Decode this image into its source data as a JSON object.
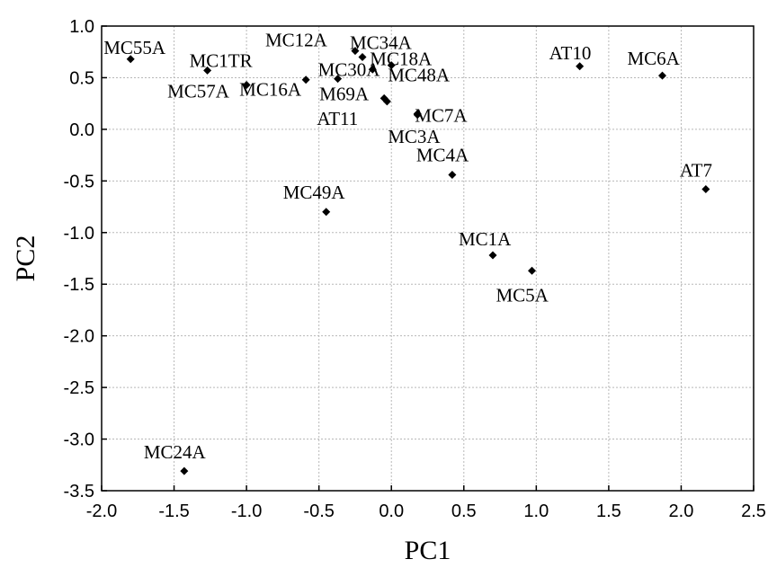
{
  "chart_data": {
    "type": "scatter",
    "title": "",
    "xlabel": "PC1",
    "ylabel": "PC2",
    "xlim": [
      -2.0,
      2.5
    ],
    "ylim": [
      -3.5,
      1.0
    ],
    "xticks": [
      "-2.0",
      "-1.5",
      "-1.0",
      "-0.5",
      "0.0",
      "0.5",
      "1.0",
      "1.5",
      "2.0",
      "2.5"
    ],
    "yticks": [
      "1.0",
      "0.5",
      "0.0",
      "-0.5",
      "-1.0",
      "-1.5",
      "-2.0",
      "-2.5",
      "-3.0",
      "-3.5"
    ],
    "grid": true,
    "marker": "diamond",
    "color": "#000000",
    "points": [
      {
        "label": "MC55A",
        "x": -1.8,
        "y": 0.68
      },
      {
        "label": "MC1TR",
        "x": -1.27,
        "y": 0.57
      },
      {
        "label": "MC57A",
        "x": -1.0,
        "y": 0.43
      },
      {
        "label": "MC16A",
        "x": -0.59,
        "y": 0.48
      },
      {
        "label": "MC12A",
        "x": -0.25,
        "y": 0.76
      },
      {
        "label": "MC34A",
        "x": -0.2,
        "y": 0.7
      },
      {
        "label": "MC30A",
        "x": -0.37,
        "y": 0.49
      },
      {
        "label": "M69A",
        "x": -0.05,
        "y": 0.3
      },
      {
        "label": "AT11",
        "x": -0.03,
        "y": 0.27
      },
      {
        "label": "MC18A",
        "x": -0.13,
        "y": 0.58
      },
      {
        "label": "MC48A",
        "x": 0.0,
        "y": 0.62
      },
      {
        "label": "MC7A",
        "x": 0.18,
        "y": 0.15
      },
      {
        "label": "MC3A",
        "x": 0.18,
        "y": 0.14
      },
      {
        "label": "AT10",
        "x": 1.3,
        "y": 0.61
      },
      {
        "label": "MC6A",
        "x": 1.87,
        "y": 0.52
      },
      {
        "label": "MC4A",
        "x": 0.42,
        "y": -0.44
      },
      {
        "label": "AT7",
        "x": 2.17,
        "y": -0.58
      },
      {
        "label": "MC49A",
        "x": -0.45,
        "y": -0.8
      },
      {
        "label": "MC1A",
        "x": 0.7,
        "y": -1.22
      },
      {
        "label": "MC5A",
        "x": 0.97,
        "y": -1.37
      },
      {
        "label": "MC24A",
        "x": -1.43,
        "y": -3.31
      }
    ]
  }
}
